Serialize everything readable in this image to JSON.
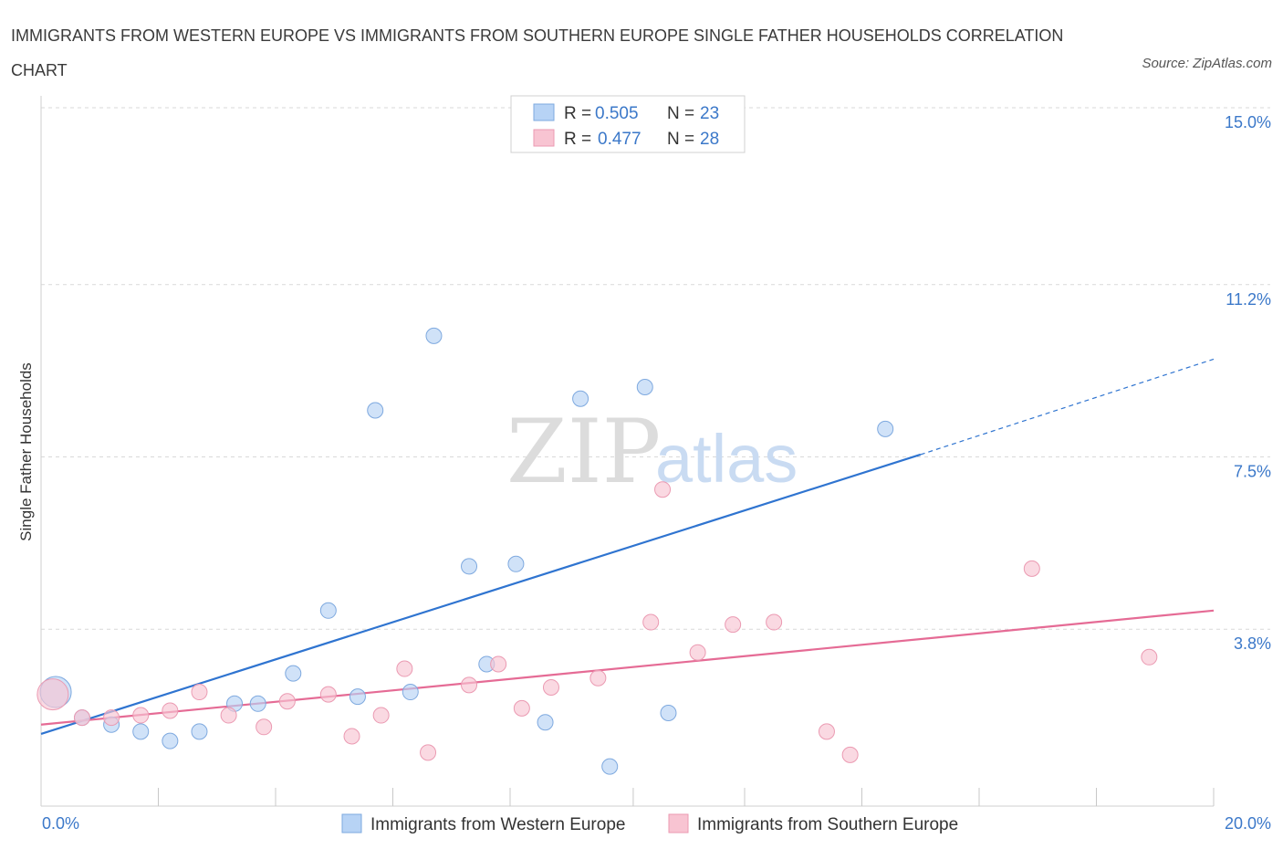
{
  "title": "IMMIGRANTS FROM WESTERN EUROPE VS IMMIGRANTS FROM SOUTHERN EUROPE SINGLE FATHER HOUSEHOLDS CORRELATION CHART",
  "source": "Source: ZipAtlas.com",
  "watermark": {
    "zip": "ZIP",
    "atlas": "atlas"
  },
  "colors": {
    "blue_fill": "#b7d3f5",
    "blue_stroke": "#7ea9df",
    "blue_line": "#2f74d0",
    "pink_fill": "#f8c4d2",
    "pink_stroke": "#eb9ab2",
    "pink_line": "#e56b95",
    "tick_label": "#3b78c9",
    "grid": "#d9d9d9"
  },
  "legend": {
    "r_label": "R =",
    "n_label": "N =",
    "rows": [
      {
        "r": "0.505",
        "n": "23"
      },
      {
        "r": "0.477",
        "n": "28"
      }
    ]
  },
  "chart_data": {
    "type": "scatter",
    "title": "IMMIGRANTS FROM WESTERN EUROPE VS IMMIGRANTS FROM SOUTHERN EUROPE SINGLE FATHER HOUSEHOLDS CORRELATION CHART",
    "xlabel": "",
    "ylabel": "Single Father Households",
    "xlim": [
      0,
      20
    ],
    "ylim": [
      0,
      15
    ],
    "x_tick_labels": [
      {
        "value": 0,
        "label": "0.0%"
      },
      {
        "value": 20,
        "label": "20.0%"
      }
    ],
    "y_ticks": [
      {
        "value": 3.8,
        "label": "3.8%"
      },
      {
        "value": 7.5,
        "label": "7.5%"
      },
      {
        "value": 11.2,
        "label": "11.2%"
      },
      {
        "value": 15.0,
        "label": "15.0%"
      }
    ],
    "x_minor_ticks": [
      2,
      4,
      6,
      8,
      10.1,
      12,
      14,
      16,
      18,
      20
    ],
    "grid": true,
    "series": [
      {
        "name": "Immigrants from Western Europe",
        "color": "blue",
        "points": [
          [
            0.25,
            2.45,
            "large"
          ],
          [
            0.7,
            1.9
          ],
          [
            1.2,
            1.75
          ],
          [
            1.7,
            1.6
          ],
          [
            2.2,
            1.4
          ],
          [
            2.7,
            1.6
          ],
          [
            3.3,
            2.2
          ],
          [
            3.7,
            2.2
          ],
          [
            4.3,
            2.85
          ],
          [
            4.9,
            4.2
          ],
          [
            5.4,
            2.35
          ],
          [
            5.7,
            8.5
          ],
          [
            6.3,
            2.45
          ],
          [
            6.7,
            10.1
          ],
          [
            7.3,
            5.15
          ],
          [
            7.6,
            3.05
          ],
          [
            8.1,
            5.2
          ],
          [
            8.6,
            1.8
          ],
          [
            9.2,
            8.75
          ],
          [
            9.7,
            0.85
          ],
          [
            10.3,
            9.0
          ],
          [
            10.7,
            2.0
          ],
          [
            14.4,
            8.1
          ]
        ],
        "trend": {
          "x0": 0,
          "y0": 1.55,
          "x1": 15.0,
          "y1": 7.55,
          "dashed_to_x": 20,
          "dashed_to_y": 9.6
        }
      },
      {
        "name": "Immigrants from Southern Europe",
        "color": "pink",
        "points": [
          [
            0.2,
            2.4,
            "large"
          ],
          [
            0.7,
            1.9
          ],
          [
            1.2,
            1.9
          ],
          [
            1.7,
            1.95
          ],
          [
            2.2,
            2.05
          ],
          [
            2.7,
            2.45
          ],
          [
            3.2,
            1.95
          ],
          [
            3.8,
            1.7
          ],
          [
            4.2,
            2.25
          ],
          [
            4.9,
            2.4
          ],
          [
            5.3,
            1.5
          ],
          [
            5.8,
            1.95
          ],
          [
            6.2,
            2.95
          ],
          [
            6.6,
            1.15
          ],
          [
            7.3,
            2.6
          ],
          [
            7.8,
            3.05
          ],
          [
            8.2,
            2.1
          ],
          [
            8.7,
            2.55
          ],
          [
            9.5,
            2.75
          ],
          [
            10.4,
            3.95
          ],
          [
            10.6,
            6.8
          ],
          [
            11.2,
            3.3
          ],
          [
            11.8,
            3.9
          ],
          [
            12.5,
            3.95
          ],
          [
            13.4,
            1.6
          ],
          [
            13.8,
            1.1
          ],
          [
            16.9,
            5.1
          ],
          [
            18.9,
            3.2
          ]
        ],
        "trend": {
          "x0": 0,
          "y0": 1.75,
          "x1": 20,
          "y1": 4.2
        }
      }
    ]
  }
}
